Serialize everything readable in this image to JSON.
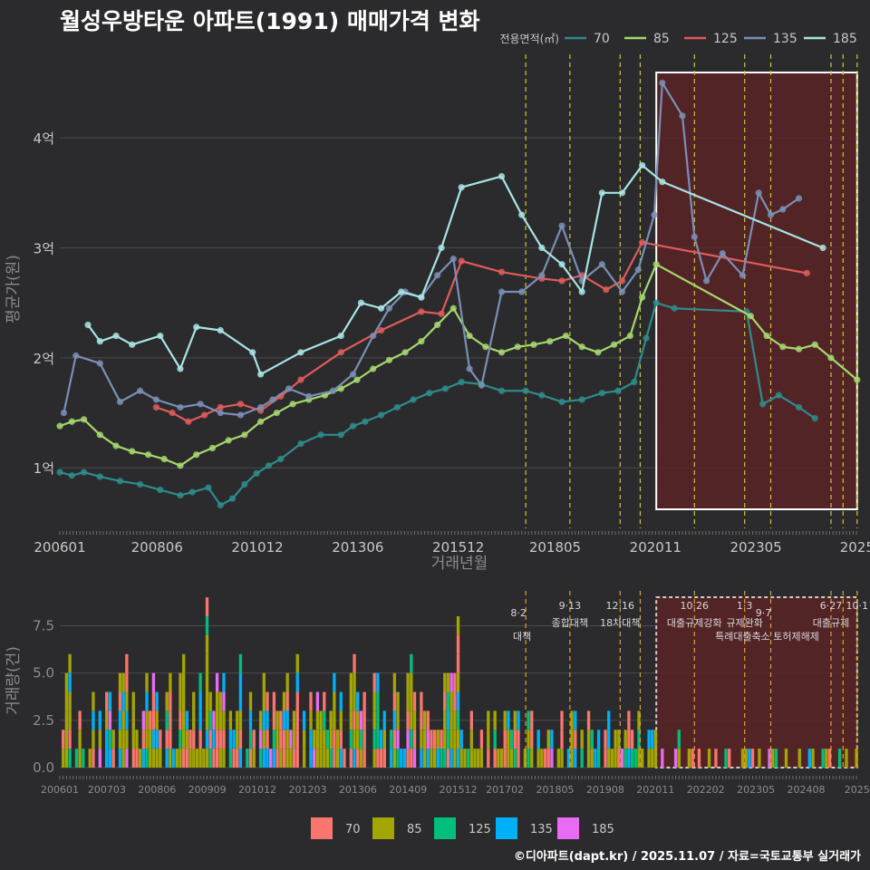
{
  "title": "월성우방타운 아파트(1991) 매매가격 변화",
  "footer": "©디아파트(dapt.kr) / 2025.11.07 / 자료=국토교통부 실거래가",
  "colors": {
    "background": "#2b2b2d",
    "grid": "#4a4a4c",
    "text": "#c8c8c8",
    "axis_title": "#8a8a8a",
    "policy_line": "#c9c93a",
    "highlight_fill": "#5a2326",
    "highlight_border": "#ffffff"
  },
  "chart_data": [
    {
      "type": "line",
      "title": "",
      "xlabel": "거래년월",
      "ylabel": "평균가(원)",
      "legend_title": "전용면적(㎡)",
      "legend_position": "top-right",
      "x_range": [
        2006.0,
        2025.9
      ],
      "ylim": [
        0.45,
        4.8
      ],
      "x_tick_labels": [
        "200601",
        "200806",
        "201012",
        "201306",
        "201512",
        "201805",
        "202011",
        "202305",
        "2025"
      ],
      "x_tick_values": [
        2006.0,
        2008.42,
        2010.92,
        2013.42,
        2015.92,
        2018.33,
        2020.83,
        2023.33,
        2025.85
      ],
      "y_ticks": [
        {
          "value": 1,
          "label": "1억"
        },
        {
          "value": 2,
          "label": "2억"
        },
        {
          "value": 3,
          "label": "3억"
        },
        {
          "value": 4,
          "label": "4억"
        }
      ],
      "highlight_range": [
        2020.85,
        2025.85
      ],
      "policy_dates": [
        2017.6,
        2018.7,
        2019.95,
        2020.45,
        2021.8,
        2023.05,
        2023.7,
        2025.2,
        2025.5,
        2025.85
      ],
      "series": [
        {
          "name": "70",
          "color": "#2e8c8c",
          "x": [
            2006.0,
            2006.3,
            2006.6,
            2007.0,
            2007.5,
            2008.0,
            2008.5,
            2009.0,
            2009.3,
            2009.7,
            2010.0,
            2010.3,
            2010.6,
            2010.9,
            2011.2,
            2011.5,
            2012.0,
            2012.5,
            2013.0,
            2013.3,
            2013.6,
            2014.0,
            2014.4,
            2014.8,
            2015.2,
            2015.6,
            2016.0,
            2016.5,
            2017.0,
            2017.6,
            2018.0,
            2018.5,
            2019.0,
            2019.5,
            2019.9,
            2020.3,
            2020.6,
            2020.85,
            2021.3,
            2023.1,
            2023.5,
            2023.9,
            2024.4,
            2024.8
          ],
          "y": [
            0.96,
            0.93,
            0.96,
            0.92,
            0.88,
            0.85,
            0.8,
            0.75,
            0.78,
            0.82,
            0.66,
            0.72,
            0.85,
            0.95,
            1.02,
            1.08,
            1.22,
            1.3,
            1.3,
            1.38,
            1.42,
            1.48,
            1.55,
            1.62,
            1.68,
            1.72,
            1.78,
            1.76,
            1.7,
            1.7,
            1.66,
            1.6,
            1.62,
            1.68,
            1.7,
            1.78,
            2.18,
            2.5,
            2.45,
            2.42,
            1.58,
            1.66,
            1.55,
            1.45
          ]
        },
        {
          "name": "85",
          "color": "#a5d76e",
          "x": [
            2006.0,
            2006.3,
            2006.6,
            2007.0,
            2007.4,
            2007.8,
            2008.2,
            2008.6,
            2009.0,
            2009.4,
            2009.8,
            2010.2,
            2010.6,
            2011.0,
            2011.4,
            2011.8,
            2012.2,
            2012.6,
            2013.0,
            2013.4,
            2013.8,
            2014.2,
            2014.6,
            2015.0,
            2015.4,
            2015.8,
            2016.2,
            2016.6,
            2017.0,
            2017.4,
            2017.8,
            2018.2,
            2018.6,
            2019.0,
            2019.4,
            2019.8,
            2020.2,
            2020.5,
            2020.85,
            2023.2,
            2023.6,
            2024.0,
            2024.4,
            2024.8,
            2025.2,
            2025.85
          ],
          "y": [
            1.38,
            1.42,
            1.44,
            1.3,
            1.2,
            1.15,
            1.12,
            1.08,
            1.02,
            1.12,
            1.18,
            1.25,
            1.3,
            1.42,
            1.5,
            1.58,
            1.62,
            1.66,
            1.72,
            1.8,
            1.9,
            1.98,
            2.05,
            2.15,
            2.3,
            2.45,
            2.2,
            2.1,
            2.05,
            2.1,
            2.12,
            2.15,
            2.2,
            2.1,
            2.05,
            2.12,
            2.2,
            2.55,
            2.85,
            2.38,
            2.2,
            2.1,
            2.08,
            2.12,
            2.0,
            1.8
          ]
        },
        {
          "name": "125",
          "color": "#e05a5a",
          "x": [
            2008.4,
            2008.8,
            2009.2,
            2009.6,
            2010.0,
            2010.5,
            2011.0,
            2011.5,
            2012.0,
            2013.0,
            2014.0,
            2015.0,
            2015.5,
            2016.0,
            2017.0,
            2018.0,
            2018.5,
            2019.0,
            2019.6,
            2020.0,
            2020.5,
            2024.6
          ],
          "y": [
            1.55,
            1.5,
            1.42,
            1.48,
            1.55,
            1.58,
            1.52,
            1.65,
            1.8,
            2.05,
            2.25,
            2.42,
            2.4,
            2.88,
            2.78,
            2.72,
            2.7,
            2.75,
            2.62,
            2.7,
            3.05,
            2.77
          ]
        },
        {
          "name": "135",
          "color": "#7a8fb5",
          "x": [
            2006.1,
            2006.4,
            2007.0,
            2007.5,
            2008.0,
            2008.4,
            2009.0,
            2009.5,
            2010.0,
            2010.5,
            2011.0,
            2011.3,
            2011.7,
            2012.2,
            2012.8,
            2013.3,
            2013.8,
            2014.2,
            2014.6,
            2015.0,
            2015.4,
            2015.8,
            2016.2,
            2016.5,
            2017.0,
            2017.5,
            2018.0,
            2018.5,
            2019.0,
            2019.5,
            2020.0,
            2020.4,
            2020.8,
            2021.0,
            2021.5,
            2021.8,
            2022.1,
            2022.5,
            2023.0,
            2023.4,
            2023.7,
            2024.0,
            2024.4
          ],
          "y": [
            1.5,
            2.02,
            1.95,
            1.6,
            1.7,
            1.62,
            1.55,
            1.58,
            1.5,
            1.48,
            1.55,
            1.62,
            1.72,
            1.65,
            1.7,
            1.85,
            2.2,
            2.45,
            2.6,
            2.55,
            2.75,
            2.9,
            1.9,
            1.75,
            2.6,
            2.6,
            2.75,
            3.2,
            2.7,
            2.85,
            2.6,
            2.8,
            3.3,
            4.5,
            4.2,
            3.1,
            2.7,
            2.95,
            2.75,
            3.5,
            3.3,
            3.35,
            3.45
          ]
        },
        {
          "name": "185",
          "color": "#a8e4e4",
          "x": [
            2006.7,
            2007.0,
            2007.4,
            2007.8,
            2008.5,
            2009.0,
            2009.4,
            2010.0,
            2010.8,
            2011.0,
            2012.0,
            2013.0,
            2013.5,
            2014.0,
            2014.5,
            2015.0,
            2015.5,
            2016.0,
            2017.0,
            2017.5,
            2018.0,
            2018.5,
            2019.0,
            2019.5,
            2020.0,
            2020.5,
            2021.0,
            2025.0
          ],
          "y": [
            2.3,
            2.15,
            2.2,
            2.12,
            2.2,
            1.9,
            2.28,
            2.25,
            2.05,
            1.85,
            2.05,
            2.2,
            2.5,
            2.45,
            2.6,
            2.55,
            3.0,
            3.55,
            3.65,
            3.3,
            3.0,
            2.85,
            2.6,
            3.5,
            3.5,
            3.75,
            3.6,
            3.0
          ]
        }
      ]
    },
    {
      "type": "bar",
      "stacked": true,
      "title": "",
      "xlabel": "",
      "ylabel": "거래량(건)",
      "legend_position": "bottom",
      "x_range": [
        2006.0,
        2025.9
      ],
      "ylim": [
        0,
        9.2
      ],
      "y_ticks": [
        0,
        2.5,
        5.0,
        7.5
      ],
      "y_tick_labels": [
        "0.0",
        "2.5",
        "5.0",
        "7.5"
      ],
      "x_tick_labels": [
        "200601",
        "200703",
        "200806",
        "200909",
        "201012",
        "201203",
        "201306",
        "201409",
        "201512",
        "201702",
        "201805",
        "201908",
        "202011",
        "202202",
        "202305",
        "202408",
        "2025"
      ],
      "x_tick_values": [
        2006.0,
        2007.17,
        2008.42,
        2009.67,
        2010.92,
        2012.17,
        2013.42,
        2014.67,
        2015.92,
        2017.08,
        2018.33,
        2019.58,
        2020.83,
        2022.08,
        2023.33,
        2024.58,
        2025.85
      ],
      "highlight_range": [
        2020.85,
        2025.85
      ],
      "series_names": [
        "70",
        "85",
        "125",
        "135",
        "185"
      ],
      "series_colors": [
        "#f8766d",
        "#a3a500",
        "#00bf7d",
        "#00b0f6",
        "#e76bf3"
      ],
      "policy_events": [
        {
          "x": 2017.6,
          "date": "8·2",
          "label": "대책",
          "row": 1
        },
        {
          "x": 2018.7,
          "date": "9·13",
          "label": "종합대책",
          "row": 0
        },
        {
          "x": 2019.95,
          "date": "12·16",
          "label": "18차대책",
          "row": 0
        },
        {
          "x": 2020.45,
          "date": "",
          "label": "",
          "row": 0
        },
        {
          "x": 2021.8,
          "date": "10·26",
          "label": "대출규제강화",
          "row": 0
        },
        {
          "x": 2023.05,
          "date": "1·3",
          "label": "규제완화",
          "row": 0
        },
        {
          "x": 2023.7,
          "date": "9·7",
          "label": "특례대출축소 토허제해제",
          "row": 1
        },
        {
          "x": 2025.2,
          "date": "6·27",
          "label": "대출규제",
          "row": 0
        },
        {
          "x": 2025.5,
          "date": "",
          "label": "",
          "row": 0
        },
        {
          "x": 2025.85,
          "date": "10·1",
          "label": "",
          "row": 0
        }
      ]
    }
  ]
}
